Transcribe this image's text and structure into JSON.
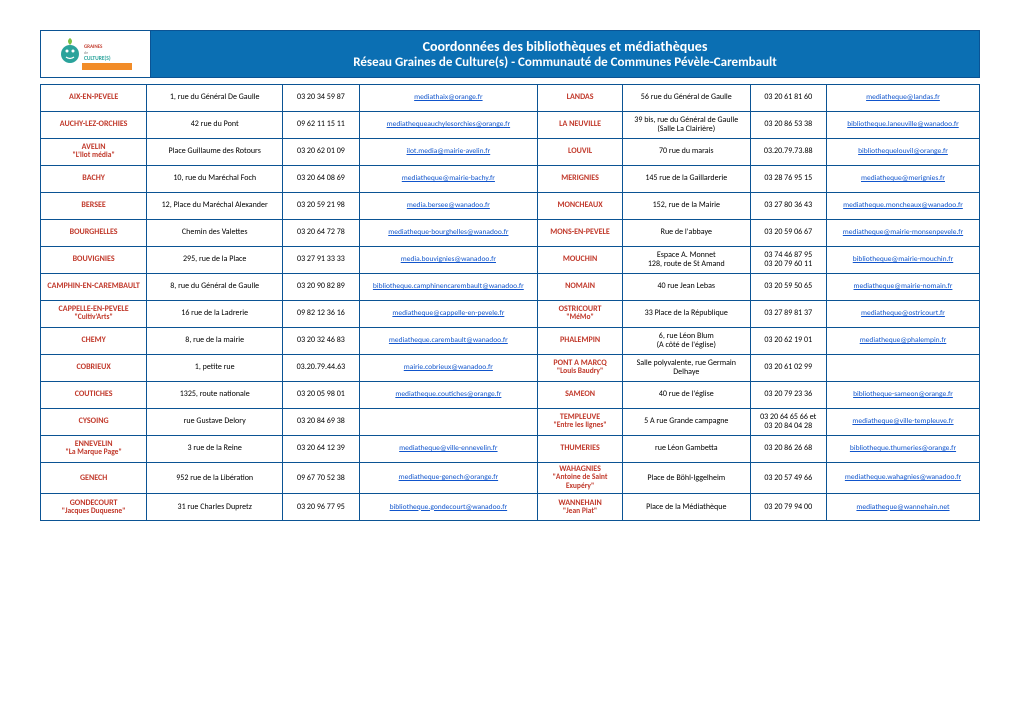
{
  "header": {
    "title1": "Coordonnées des bibliothèques et médiathèques",
    "title2": "Réseau Graines de Culture(s) - Communauté de Communes Pévèle-Carembault",
    "banner_bg": "#0b6fb3",
    "border_color": "#0b5394",
    "name_color": "#c1392b",
    "link_color": "#1155cc"
  },
  "colWidths": [
    "12.5%",
    "16%",
    "9%",
    "21%",
    "10%",
    "15%",
    "9%",
    "18%"
  ],
  "rows": [
    {
      "l": {
        "name": "AIX-EN-PEVELE",
        "sub": "",
        "addr": "1, rue du Général De Gaulle",
        "phone": "03 20 34 59 87",
        "email": "mediathaix@orange.fr"
      },
      "r": {
        "name": "LANDAS",
        "sub": "",
        "addr": "56 rue du Général de Gaulle",
        "phone": "03 20 61 81 60",
        "email": "mediatheque@landas.fr"
      }
    },
    {
      "l": {
        "name": "AUCHY-LEZ-ORCHIES",
        "sub": "",
        "addr": "42 rue du Pont",
        "phone": "09 62 11 15 11",
        "email": "mediathequeauchylesorchies@orange.fr"
      },
      "r": {
        "name": "LA NEUVILLE",
        "sub": "",
        "addr": "39 bis, rue du Général de Gaulle\n(Salle La Clairière)",
        "phone": "03 20 86 53 38",
        "email": "bibliotheque.laneuville@wanadoo.fr"
      }
    },
    {
      "l": {
        "name": "AVELIN",
        "sub": "\"L'Ilot média\"",
        "addr": "Place Guillaume des Rotours",
        "phone": "03 20 62 01 09",
        "email": "ilot.media@mairie-avelin.fr"
      },
      "r": {
        "name": "LOUVIL",
        "sub": "",
        "addr": "70 rue du marais",
        "phone": "03.20.79.73.88",
        "email": "bibliothequelouvil@orange.fr"
      }
    },
    {
      "l": {
        "name": "BACHY",
        "sub": "",
        "addr": "10, rue du Maréchal Foch",
        "phone": "03 20 64 08 69",
        "email": "mediatheque@mairie-bachy.fr"
      },
      "r": {
        "name": "MERIGNIES",
        "sub": "",
        "addr": "145 rue de la Gaillarderie",
        "phone": "03 28 76 95 15",
        "email": "mediatheque@merignies.fr"
      }
    },
    {
      "l": {
        "name": "BERSEE",
        "sub": "",
        "addr": "12, Place du Maréchal Alexander",
        "phone": "03 20 59 21 98",
        "email": "media.bersee@wanadoo.fr"
      },
      "r": {
        "name": "MONCHEAUX",
        "sub": "",
        "addr": "152, rue de la Mairie",
        "phone": "03 27 80 36 43",
        "email": "mediatheque.moncheaux@wanadoo.fr"
      }
    },
    {
      "l": {
        "name": "BOURGHELLES",
        "sub": "",
        "addr": "Chemin des Valettes",
        "phone": "03 20 64 72 78",
        "email": "mediatheque-bourghelles@wanadoo.fr"
      },
      "r": {
        "name": "MONS-EN-PEVELE",
        "sub": "",
        "addr": "Rue de l'abbaye",
        "phone": "03 20 59 06 67",
        "email": "mediatheque@mairie-monsenpevele.fr"
      }
    },
    {
      "l": {
        "name": "BOUVIGNIES",
        "sub": "",
        "addr": "295, rue de la Place",
        "phone": "03  27 91 33 33",
        "email": "media.bouvignies@wanadoo.fr"
      },
      "r": {
        "name": "MOUCHIN",
        "sub": "",
        "addr": "Espace A. Monnet\n128, route de St Amand",
        "phone": "03 74 46 87 95\n03 20 79 60 11",
        "email": "bibliotheque@mairie-mouchin.fr"
      }
    },
    {
      "l": {
        "name": "CAMPHIN-EN-CAREMBAULT",
        "sub": "",
        "addr": "8, rue du Général de Gaulle",
        "phone": "03 20 90 82 89",
        "email": "bibliotheque.camphinencarembault@wanadoo.fr"
      },
      "r": {
        "name": "NOMAIN",
        "sub": "",
        "addr": "40 rue Jean Lebas",
        "phone": "03 20 59 50 65",
        "email": "mediatheque@mairie-nomain.fr"
      }
    },
    {
      "l": {
        "name": "CAPPELLE-EN-PEVELE",
        "sub": "\"Cultiv'Arts\"",
        "addr": "16 rue de la Ladrerie",
        "phone": "09 82 12 36 16",
        "email": "mediatheque@cappelle-en-pevele.fr"
      },
      "r": {
        "name": "OSTRICOURT",
        "sub": "\"MéMo\"",
        "addr": "33 Place de la République",
        "phone": "03 27 89 81 37",
        "email": "mediatheque@ostricourt.fr"
      }
    },
    {
      "l": {
        "name": "CHEMY",
        "sub": "",
        "addr": "8, rue de la mairie",
        "phone": "03 20 32 46 83",
        "email": "mediatheque.carembault@wanadoo.fr"
      },
      "r": {
        "name": "PHALEMPIN",
        "sub": "",
        "addr": "6, rue Léon Blum\n(A côté de l'église)",
        "phone": "03 20 62 19 01",
        "email": "mediatheque@phalempin.fr"
      }
    },
    {
      "l": {
        "name": "COBRIEUX",
        "sub": "",
        "addr": "1, petite rue",
        "phone": "03.20.79.44.63",
        "email": "mairie.cobrieux@wanadoo.fr"
      },
      "r": {
        "name": "PONT A MARCQ",
        "sub": "\"Louis Baudry\"",
        "addr": "Salle polyvalente, rue Germain Delhaye",
        "phone": "03 20 61 02 99",
        "email": ""
      }
    },
    {
      "l": {
        "name": "COUTICHES",
        "sub": "",
        "addr": "1325, route nationale",
        "phone": "03 20 05 98 01",
        "email": "mediatheque.coutiches@orange.fr"
      },
      "r": {
        "name": "SAMEON",
        "sub": "",
        "addr": "40 rue de l'église",
        "phone": "03 20 79 23 36",
        "email": "bibliotheque-sameon@orange.fr"
      }
    },
    {
      "l": {
        "name": "CYSOING",
        "sub": "",
        "addr": "rue Gustave Delory",
        "phone": "03 20 84 69 38",
        "email": ""
      },
      "r": {
        "name": "TEMPLEUVE",
        "sub": "\"Entre les lignes\"",
        "addr": "5 A  rue Grande campagne",
        "phone": "03 20 64 65 66 et\n03 20 84 04 28",
        "email": "mediatheque@ville-templeuve.fr"
      }
    },
    {
      "l": {
        "name": "ENNEVELIN",
        "sub": "\"La Marque Page\"",
        "addr": "3 rue de la Reine",
        "phone": "03 20 64 12 39",
        "email": "mediatheque@ville-ennevelin.fr"
      },
      "r": {
        "name": "THUMERIES",
        "sub": "",
        "addr": "rue Léon Gambetta",
        "phone": "03 20 86 26 68",
        "email": "bibliotheque.thumeries@orange.fr"
      }
    },
    {
      "l": {
        "name": "GENECH",
        "sub": "",
        "addr": "952  rue de la Libération",
        "phone": "09 67 70 52 38",
        "email": "mediatheque-genech@orange.fr"
      },
      "r": {
        "name": "WAHAGNIES",
        "sub": "\"Antoine de Saint Exupéry\"",
        "addr": "Place de Böhl-Iggelheim",
        "phone": "03 20 57 49 66",
        "email": "mediatheque.wahagnies@wanadoo.fr"
      }
    },
    {
      "l": {
        "name": "GONDECOURT",
        "sub": "\"Jacques Duquesne\"",
        "addr": "31 rue Charles Dupretz",
        "phone": "03 20 96 77 95",
        "email": "bibliotheque.gondecourt@wanadoo.fr"
      },
      "r": {
        "name": "WANNEHAIN",
        "sub": "\"Jean Piat\"",
        "addr": "Place de la Médiathèque",
        "phone": "03 20 79 94 00",
        "email": "mediatheque@wannehain.net"
      }
    }
  ]
}
